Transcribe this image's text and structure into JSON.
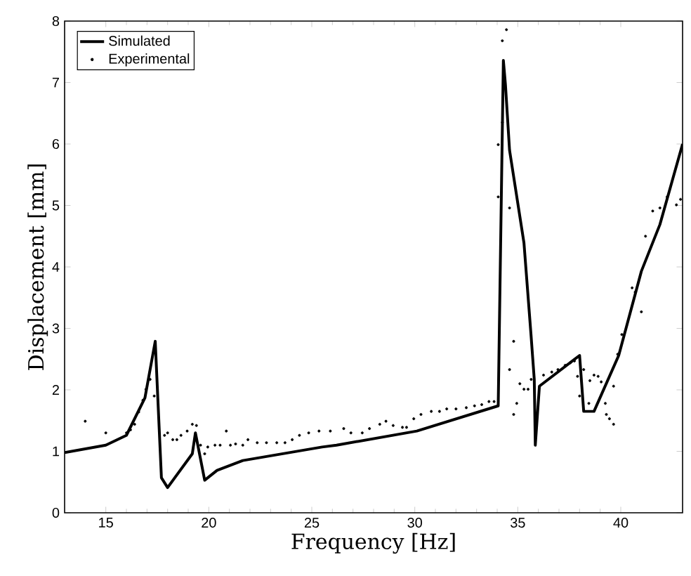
{
  "chart_data": {
    "type": "line",
    "xlabel": "Frequency [Hz]",
    "ylabel": "Displacement [mm]",
    "xlim": [
      13,
      43
    ],
    "ylim": [
      0,
      8
    ],
    "xticks": [
      15,
      20,
      25,
      30,
      35,
      40
    ],
    "yticks": [
      0,
      1,
      2,
      3,
      4,
      5,
      6,
      7,
      8
    ],
    "grid": false,
    "legend": "top left",
    "series": [
      {
        "name": "Simulated",
        "color": "#000000",
        "marker": "none",
        "line_style": "solid",
        "x": [
          13.0,
          15.0,
          16.0,
          16.9,
          17.4,
          17.7,
          18.0,
          19.2,
          19.35,
          19.8,
          20.4,
          21.65,
          25.5,
          26.2,
          30.1,
          34.05,
          34.3,
          34.4,
          34.6,
          35.3,
          35.65,
          35.8,
          35.85,
          36.05,
          38.0,
          38.2,
          38.7,
          39.9,
          41.0,
          41.9,
          43.0
        ],
        "values": [
          0.98,
          1.1,
          1.26,
          1.87,
          2.79,
          0.57,
          0.41,
          0.96,
          1.3,
          0.53,
          0.69,
          0.85,
          1.07,
          1.1,
          1.33,
          1.74,
          7.36,
          6.97,
          5.9,
          4.39,
          2.86,
          2.17,
          1.1,
          2.06,
          2.56,
          1.65,
          1.65,
          2.56,
          3.93,
          4.69,
          6.0
        ]
      },
      {
        "name": "Experimental",
        "type": "scatter",
        "color": "#000000",
        "marker": "circle",
        "x": [
          14.0,
          15.0,
          16.0,
          16.2,
          16.4,
          16.6,
          16.8,
          16.95,
          17.15,
          17.35,
          17.85,
          18.0,
          18.25,
          18.45,
          18.65,
          18.95,
          19.2,
          19.4,
          19.6,
          19.8,
          19.95,
          20.3,
          20.55,
          20.85,
          21.05,
          21.3,
          21.65,
          21.9,
          22.35,
          22.8,
          23.3,
          23.7,
          24.05,
          24.4,
          24.85,
          25.35,
          25.9,
          26.55,
          26.9,
          27.45,
          27.8,
          28.3,
          28.6,
          28.95,
          29.4,
          29.6,
          29.95,
          30.3,
          30.8,
          31.2,
          31.55,
          32.0,
          32.5,
          32.9,
          33.25,
          33.6,
          33.85,
          34.05,
          34.05,
          34.25,
          34.25,
          34.45,
          34.6,
          34.8,
          34.6,
          34.8,
          34.95,
          35.1,
          35.3,
          35.5,
          35.65,
          36.25,
          36.65,
          36.95,
          37.3,
          37.55,
          37.75,
          37.9,
          38.0,
          38.2,
          38.45,
          38.5,
          38.7,
          38.9,
          39.05,
          39.25,
          39.3,
          39.45,
          39.65,
          39.65,
          39.85,
          40.05,
          40.55,
          40.7,
          41.0,
          41.2,
          41.55,
          41.9,
          42.25,
          42.7,
          42.9
        ],
        "values": [
          1.49,
          1.3,
          1.3,
          1.35,
          1.44,
          1.64,
          1.83,
          2.01,
          2.17,
          1.9,
          1.26,
          1.3,
          1.19,
          1.19,
          1.26,
          1.33,
          1.44,
          1.42,
          1.1,
          0.96,
          1.07,
          1.1,
          1.1,
          1.33,
          1.1,
          1.12,
          1.1,
          1.19,
          1.14,
          1.14,
          1.14,
          1.14,
          1.19,
          1.26,
          1.3,
          1.33,
          1.33,
          1.37,
          1.3,
          1.3,
          1.37,
          1.44,
          1.49,
          1.42,
          1.39,
          1.39,
          1.53,
          1.6,
          1.65,
          1.65,
          1.69,
          1.69,
          1.71,
          1.74,
          1.76,
          1.81,
          1.81,
          5.14,
          5.99,
          6.35,
          7.68,
          7.86,
          4.96,
          2.79,
          2.33,
          1.6,
          1.78,
          2.1,
          2.01,
          2.01,
          2.17,
          2.24,
          2.29,
          2.33,
          2.4,
          2.44,
          2.47,
          2.22,
          1.9,
          2.33,
          1.78,
          2.15,
          2.24,
          2.22,
          2.13,
          1.78,
          1.6,
          1.53,
          1.44,
          2.06,
          2.58,
          2.9,
          3.66,
          3.59,
          3.27,
          4.5,
          4.91,
          4.96,
          5.14,
          5.01,
          5.1
        ]
      }
    ]
  }
}
